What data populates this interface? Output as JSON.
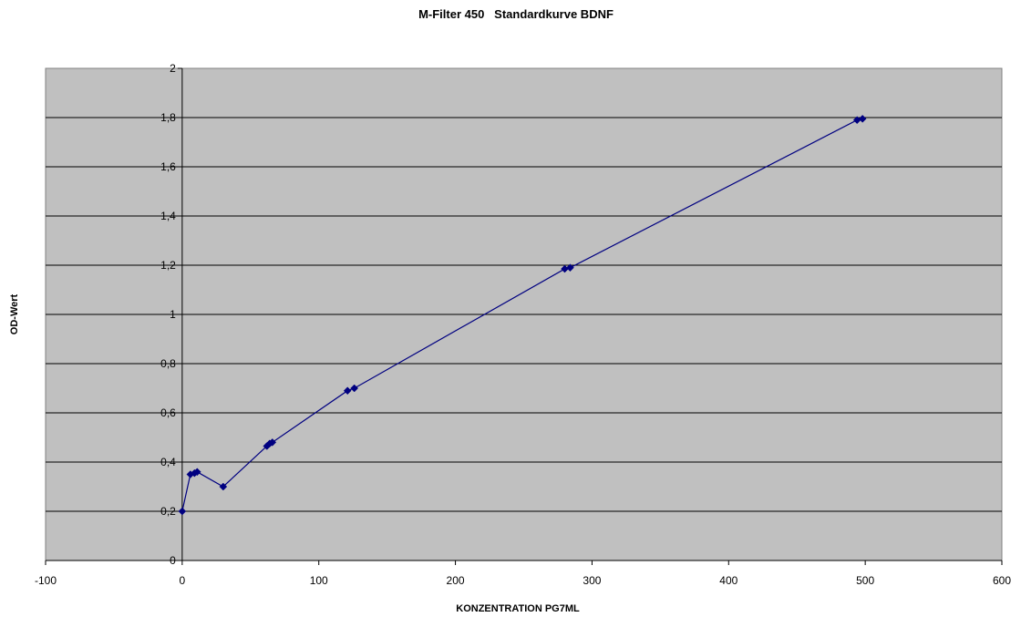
{
  "chart_data": {
    "type": "scatter",
    "title": "M-Filter 450   Standardkurve BDNF",
    "xlabel": "KONZENTRATION PG7ML",
    "ylabel": "OD-Wert",
    "xlim": [
      -100,
      600
    ],
    "ylim": [
      0,
      2
    ],
    "xticks": [
      -100,
      0,
      100,
      200,
      300,
      400,
      500,
      600
    ],
    "xtick_labels": [
      "-100",
      "0",
      "100",
      "200",
      "300",
      "400",
      "500",
      "600"
    ],
    "yticks": [
      0,
      0.2,
      0.4,
      0.6,
      0.8,
      1,
      1.2,
      1.4,
      1.6,
      1.8,
      2
    ],
    "ytick_labels": [
      "0",
      "0,2",
      "0,4",
      "0,6",
      "0,8",
      "1",
      "1,2",
      "1,4",
      "1,6",
      "1,8",
      "2"
    ],
    "grid": "horizontal",
    "legend": "none",
    "lines_connect_points": true,
    "series": [
      {
        "marker": "diamond",
        "color": "#000080",
        "x": [
          0,
          6,
          9,
          11,
          30,
          62,
          64,
          66,
          121,
          126,
          280,
          284,
          494,
          498
        ],
        "y": [
          0.2,
          0.35,
          0.355,
          0.36,
          0.3,
          0.465,
          0.475,
          0.48,
          0.69,
          0.7,
          1.185,
          1.19,
          1.79,
          1.795
        ]
      }
    ],
    "colors": {
      "plot_background": "#c0c0c0",
      "gridline": "#000000",
      "series": "#000080"
    }
  }
}
